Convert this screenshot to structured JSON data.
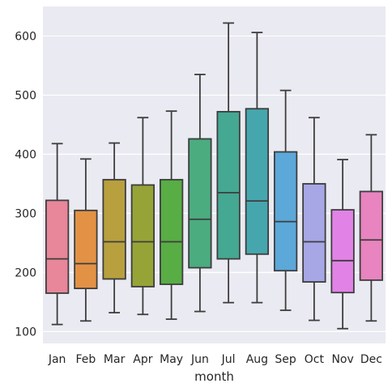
{
  "chart_data": {
    "type": "box",
    "title": "",
    "xlabel": "month",
    "ylabel": "",
    "ylim": [
      80,
      650
    ],
    "yticks": [
      100,
      200,
      300,
      400,
      500,
      600
    ],
    "ytick_labels": [
      "100",
      "200",
      "300",
      "400",
      "500",
      "600"
    ],
    "grid": true,
    "background": "#eaeaf2",
    "categories": [
      "Jan",
      "Feb",
      "Mar",
      "Apr",
      "May",
      "Jun",
      "Jul",
      "Aug",
      "Sep",
      "Oct",
      "Nov",
      "Dec"
    ],
    "boxes": [
      {
        "label": "Jan",
        "whisker_low": 112,
        "q1": 165,
        "median": 223,
        "q3": 322,
        "whisker_high": 418,
        "color": "#e8869a"
      },
      {
        "label": "Feb",
        "whisker_low": 118,
        "q1": 173,
        "median": 215,
        "q3": 305,
        "whisker_high": 392,
        "color": "#e39245"
      },
      {
        "label": "Mar",
        "whisker_low": 132,
        "q1": 189,
        "median": 252,
        "q3": 357,
        "whisker_high": 419,
        "color": "#b8a03e"
      },
      {
        "label": "Apr",
        "whisker_low": 129,
        "q1": 176,
        "median": 252,
        "q3": 348,
        "whisker_high": 462,
        "color": "#96a437"
      },
      {
        "label": "May",
        "whisker_low": 121,
        "q1": 180,
        "median": 252,
        "q3": 357,
        "whisker_high": 473,
        "color": "#58ad45"
      },
      {
        "label": "Jun",
        "whisker_low": 134,
        "q1": 208,
        "median": 290,
        "q3": 426,
        "whisker_high": 535,
        "color": "#4bac80"
      },
      {
        "label": "Jul",
        "whisker_low": 149,
        "q1": 223,
        "median": 335,
        "q3": 472,
        "whisker_high": 622,
        "color": "#44a892"
      },
      {
        "label": "Aug",
        "whisker_low": 149,
        "q1": 231,
        "median": 321,
        "q3": 477,
        "whisker_high": 606,
        "color": "#46a6ae"
      },
      {
        "label": "Sep",
        "whisker_low": 136,
        "q1": 203,
        "median": 286,
        "q3": 404,
        "whisker_high": 508,
        "color": "#5ba8d9"
      },
      {
        "label": "Oct",
        "whisker_low": 119,
        "q1": 184,
        "median": 252,
        "q3": 350,
        "whisker_high": 462,
        "color": "#a7a7e6"
      },
      {
        "label": "Nov",
        "whisker_low": 105,
        "q1": 166,
        "median": 220,
        "q3": 306,
        "whisker_high": 391,
        "color": "#e183e6"
      },
      {
        "label": "Dec",
        "whisker_low": 118,
        "q1": 187,
        "median": 255,
        "q3": 337,
        "whisker_high": 433,
        "color": "#e884bf"
      }
    ]
  }
}
